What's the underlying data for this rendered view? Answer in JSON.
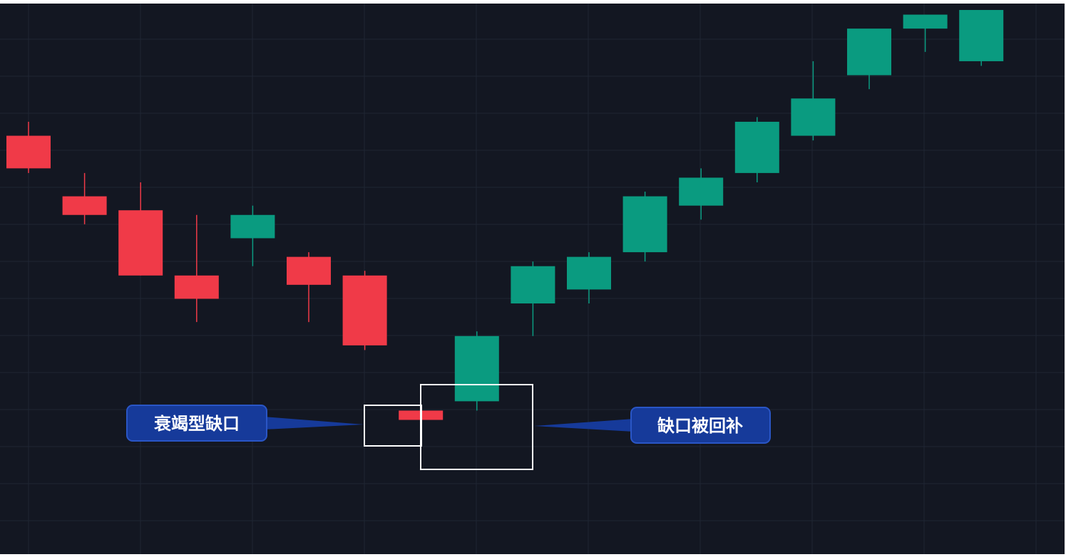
{
  "colors": {
    "background": "#131722",
    "grid": "#1f2533",
    "bearish": "#f03a48",
    "bullish": "#0a9b80",
    "highlight_box": "#ffffff",
    "callout_fill": "#163a9a",
    "callout_text": "#ffffff"
  },
  "chart_data": {
    "type": "candlestick",
    "grid": true,
    "ylim": [
      0,
      100
    ],
    "series": [
      {
        "values": [
          {
            "index": 1,
            "open": 73,
            "high": 76,
            "low": 65,
            "close": 66
          },
          {
            "index": 2,
            "open": 60,
            "high": 65,
            "low": 54,
            "close": 56
          },
          {
            "index": 3,
            "open": 57,
            "high": 63,
            "low": 43,
            "close": 43
          },
          {
            "index": 4,
            "open": 43,
            "high": 56,
            "low": 33,
            "close": 38
          },
          {
            "index": 5,
            "open": 51,
            "high": 58,
            "low": 45,
            "close": 56
          },
          {
            "index": 6,
            "open": 47,
            "high": 48,
            "low": 33,
            "close": 41
          },
          {
            "index": 7,
            "open": 43,
            "high": 44,
            "low": 27,
            "close": 28
          },
          {
            "index": 8,
            "open": 14,
            "high": 14,
            "low": 10,
            "close": 12
          },
          {
            "index": 9,
            "open": 16,
            "high": 31,
            "low": 14,
            "close": 30
          },
          {
            "index": 10,
            "open": 37,
            "high": 46,
            "low": 30,
            "close": 45
          },
          {
            "index": 11,
            "open": 40,
            "high": 48,
            "low": 37,
            "close": 47
          },
          {
            "index": 12,
            "open": 48,
            "high": 61,
            "low": 46,
            "close": 60
          },
          {
            "index": 13,
            "open": 58,
            "high": 66,
            "low": 55,
            "close": 64
          },
          {
            "index": 14,
            "open": 65,
            "high": 77,
            "low": 63,
            "close": 76
          },
          {
            "index": 15,
            "open": 73,
            "high": 89,
            "low": 72,
            "close": 81
          },
          {
            "index": 16,
            "open": 86,
            "high": 94,
            "low": 83,
            "close": 96
          },
          {
            "index": 17,
            "open": 96,
            "high": 99,
            "low": 91,
            "close": 99
          },
          {
            "index": 18,
            "open": 89,
            "high": 100,
            "low": 88,
            "close": 100
          }
        ]
      }
    ],
    "annotations": [
      {
        "label": "衰竭型缺口",
        "note_box": "gap"
      },
      {
        "label": "缺口被回补",
        "note_box": "filled"
      }
    ]
  }
}
